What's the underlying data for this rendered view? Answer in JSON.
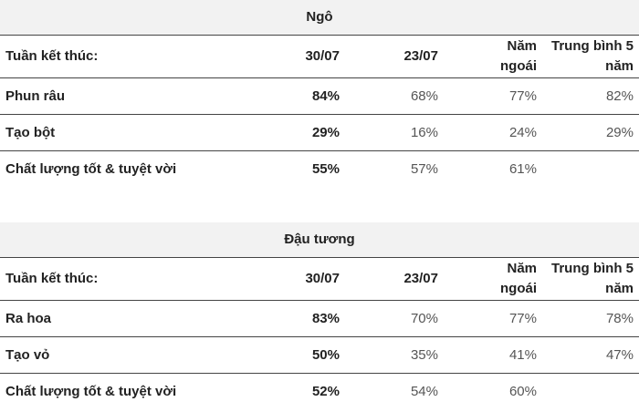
{
  "sections": [
    {
      "title": "Ngô",
      "header": [
        "Tuần kết thúc:",
        "30/07",
        "23/07",
        "Năm ngoái",
        "Trung bình 5 năm"
      ],
      "rows": [
        [
          "Phun râu",
          "84%",
          "68%",
          "77%",
          "82%"
        ],
        [
          "Tạo bột",
          "29%",
          "16%",
          "24%",
          "29%"
        ],
        [
          "Chất lượng tốt & tuyệt vời",
          "55%",
          "57%",
          "61%"
        ]
      ]
    },
    {
      "title": "Đậu tương",
      "header": [
        "Tuần kết thúc:",
        "30/07",
        "23/07",
        "Năm ngoái",
        "Trung bình 5 năm"
      ],
      "rows": [
        [
          "Ra hoa",
          "83%",
          "70%",
          "77%",
          "78%"
        ],
        [
          "Tạo vỏ",
          "50%",
          "35%",
          "41%",
          "47%"
        ],
        [
          "Chất lượng tốt & tuyệt vời",
          "52%",
          "54%",
          "60%"
        ]
      ]
    }
  ]
}
